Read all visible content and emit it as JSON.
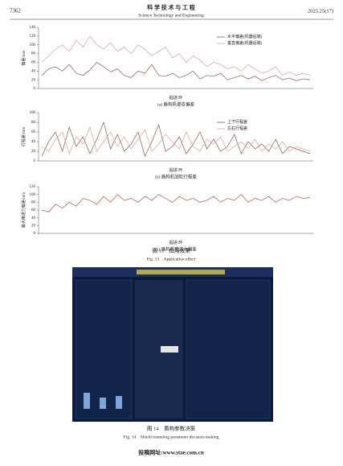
{
  "header": {
    "page": "7362",
    "journal_cn": "科 学 技 术 与 工 程",
    "journal_en": "Science Technology and Engineering",
    "issue": "2025,25(17)"
  },
  "chart_data": [
    {
      "type": "line",
      "caption": "(a) 盾构机姿态偏差",
      "xlabel": "掘进/环",
      "ylabel": "偏差/mm",
      "ylim": [
        0,
        140
      ],
      "yticks": [
        0,
        20,
        40,
        60,
        80,
        100,
        120,
        140
      ],
      "series": [
        {
          "name": "水平偏差(机器后端)",
          "color": "#8b5a4a",
          "values": [
            30,
            45,
            50,
            40,
            55,
            35,
            30,
            42,
            60,
            50,
            38,
            45,
            30,
            25,
            40,
            35,
            55,
            30,
            28,
            35,
            25,
            30,
            40,
            22,
            30,
            28,
            35,
            20,
            25,
            30,
            22,
            28,
            18,
            25,
            30,
            20,
            24,
            18,
            22,
            20
          ]
        },
        {
          "name": "垂直偏差(机器后端)",
          "color": "#d9a0a0",
          "values": [
            60,
            75,
            90,
            100,
            85,
            110,
            95,
            120,
            100,
            90,
            105,
            85,
            95,
            80,
            100,
            90,
            75,
            85,
            95,
            70,
            80,
            60,
            75,
            65,
            50,
            60,
            55,
            45,
            50,
            40,
            55,
            45,
            35,
            40,
            50,
            30,
            38,
            30,
            35,
            30
          ]
        }
      ]
    },
    {
      "type": "line",
      "caption": "(b) 盾构机油缸行程差",
      "xlabel": "掘进/环",
      "ylabel": "行程差/mm",
      "ylim": [
        0,
        100
      ],
      "yticks": [
        0,
        20,
        40,
        60,
        80,
        100
      ],
      "series": [
        {
          "name": "上下行程差",
          "color": "#8b5a4a",
          "values": [
            10,
            40,
            60,
            20,
            70,
            30,
            50,
            15,
            45,
            80,
            25,
            55,
            20,
            35,
            60,
            10,
            40,
            75,
            20,
            30,
            50,
            15,
            35,
            60,
            25,
            45,
            20,
            30,
            55,
            15,
            40,
            25,
            35,
            20,
            45,
            15,
            30,
            25,
            20,
            15
          ]
        },
        {
          "name": "左右行程差",
          "color": "#d9a0a0",
          "values": [
            30,
            20,
            45,
            60,
            15,
            50,
            35,
            70,
            20,
            40,
            60,
            30,
            50,
            25,
            45,
            65,
            20,
            35,
            55,
            40,
            25,
            60,
            30,
            20,
            45,
            35,
            50,
            20,
            30,
            40,
            25,
            45,
            20,
            35,
            25,
            40,
            20,
            30,
            25,
            20
          ]
        }
      ]
    },
    {
      "type": "line",
      "caption": "(c) 盾构机推进力偏差",
      "xlabel": "掘进/环",
      "ylabel": "最大推进力偏差/mm",
      "ylim": [
        0,
        120
      ],
      "yticks": [
        0,
        20,
        40,
        60,
        80,
        100,
        120
      ],
      "series": [
        {
          "color": "#b5534a",
          "values": [
            60,
            55,
            75,
            65,
            80,
            70,
            90,
            85,
            75,
            95,
            80,
            100,
            85,
            90,
            80,
            95,
            85,
            100,
            90,
            80,
            95,
            85,
            90,
            80,
            85,
            95,
            80,
            90,
            85,
            100,
            80,
            90,
            85,
            95,
            80,
            90,
            85,
            95,
            90,
            92
          ]
        }
      ]
    }
  ],
  "figure13": {
    "caption_cn": "图 13　应用效果",
    "caption_en": "Fig. 13　Application effect"
  },
  "figure14": {
    "caption_cn": "图 14　盾构参数决策",
    "caption_en": "Fig. 14　Shield tunneling parameter decision-making"
  },
  "footer": "投稿网址:www.stae.com.cn"
}
